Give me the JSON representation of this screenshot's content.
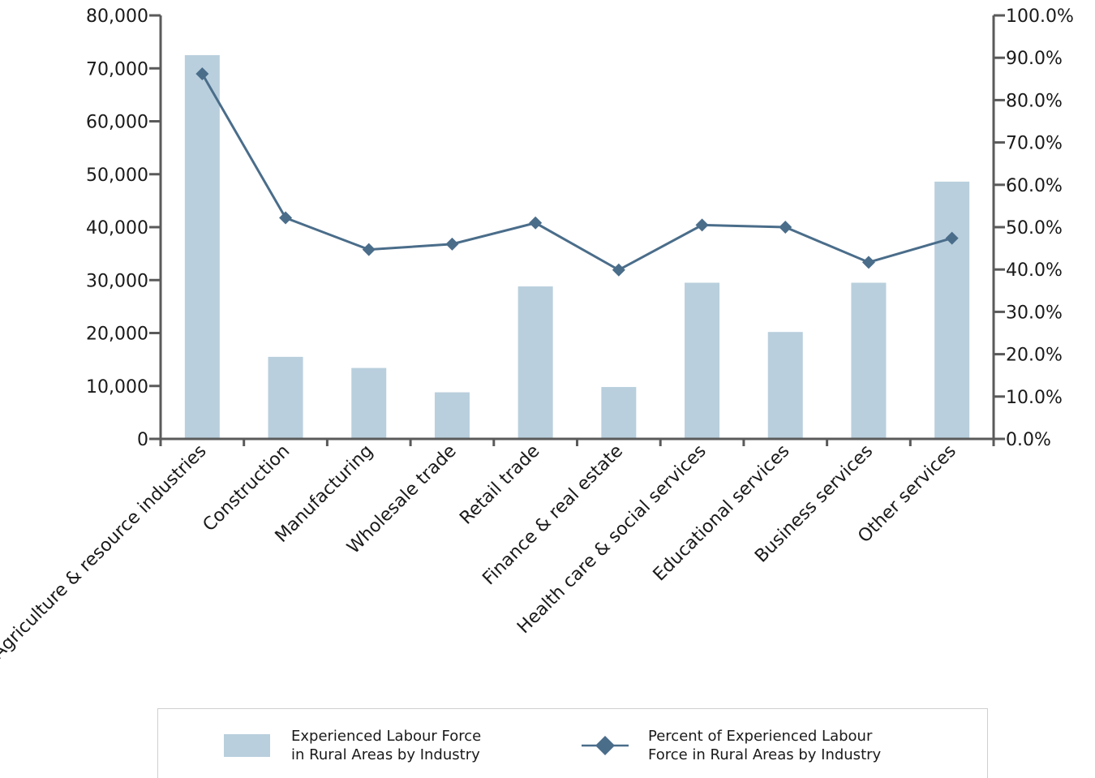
{
  "colors": {
    "bar": "#b9cfdd",
    "line": "#4a6d8a",
    "axis": "#5a5a5a"
  },
  "chart_data": {
    "type": "bar",
    "categories": [
      "Agriculture & resource industries",
      "Construction",
      "Manufacturing",
      "Wholesale trade",
      "Retail trade",
      "Finance & real estate",
      "Health care & social services",
      "Educational services",
      "Business services",
      "Other services"
    ],
    "series": [
      {
        "name": "Experienced Labour Force in Rural Areas by Industry",
        "type": "bar",
        "axis": "left",
        "values": [
          72500,
          15500,
          13400,
          8800,
          28800,
          9800,
          29500,
          20200,
          29500,
          48600
        ]
      },
      {
        "name": "Percent of Experienced Labour Force in Rural Areas by Industry",
        "type": "line",
        "axis": "right",
        "marker": "diamond",
        "values": [
          86.2,
          52.2,
          44.7,
          46.0,
          51.0,
          39.9,
          50.5,
          50.0,
          41.7,
          47.4
        ]
      }
    ],
    "left_axis": {
      "ylim": [
        0,
        80000
      ],
      "ticks": [
        "0",
        "10,000",
        "20,000",
        "30,000",
        "40,000",
        "50,000",
        "60,000",
        "70,000",
        "80,000"
      ]
    },
    "right_axis": {
      "ylim": [
        0,
        100
      ],
      "ticks": [
        "0.0%",
        "10.0%",
        "20.0%",
        "30.0%",
        "40.0%",
        "50.0%",
        "60.0%",
        "70.0%",
        "80.0%",
        "90.0%",
        "100.0%"
      ]
    },
    "grid": false,
    "legend_position": "bottom"
  },
  "legend": {
    "bar_label": "Experienced Labour Force\nin Rural Areas by Industry",
    "line_label": "Percent of Experienced Labour\nForce in Rural Areas by Industry"
  }
}
